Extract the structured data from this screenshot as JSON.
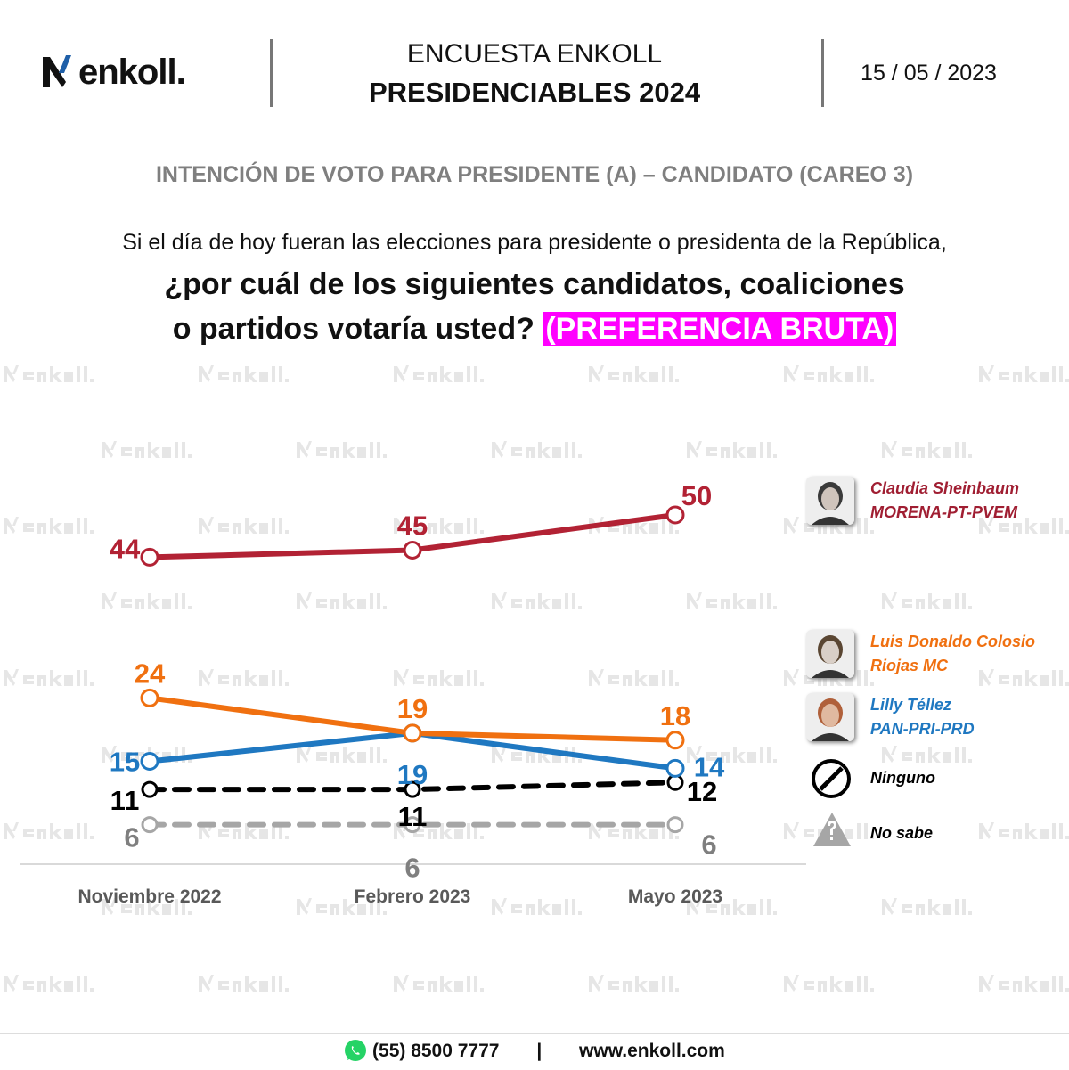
{
  "header": {
    "logo_text": "enkoll.",
    "title_line1": "ENCUESTA ENKOLL",
    "title_line2": "PRESIDENCIABLES  2024",
    "date": "15 / 05 / 2023"
  },
  "subtitle": "INTENCIÓN DE VOTO PARA PRESIDENTE (A) – CANDIDATO (CAREO 3)",
  "question": {
    "line1": "Si el día de hoy fueran las elecciones para presidente o presidenta de la República,",
    "line2": "¿por cuál de los siguientes candidatos, coaliciones",
    "line3": "o partidos votaría usted?",
    "highlight": "(PREFERENCIA BRUTA)",
    "highlight_color": "#ff00ff"
  },
  "watermark_text": "enkoll.",
  "chart_data": {
    "type": "line",
    "categories": [
      "Noviembre 2022",
      "Febrero 2023",
      "Mayo 2023"
    ],
    "grid": false,
    "legend_placement": "right",
    "series": [
      {
        "name": "Claudia Sheinbaum MORENA-PT-PVEM",
        "values": [
          44,
          45,
          50
        ],
        "color": "#b22234",
        "style": "solid"
      },
      {
        "name": "Luis Donaldo Colosio Riojas MC",
        "values": [
          24,
          19,
          18
        ],
        "color": "#f07010",
        "style": "solid"
      },
      {
        "name": "Lilly Téllez PAN-PRI-PRD",
        "values": [
          15,
          19,
          14
        ],
        "color": "#1f78c1",
        "style": "solid"
      },
      {
        "name": "Ninguno",
        "values": [
          11,
          11,
          12
        ],
        "color": "#000000",
        "style": "dashed"
      },
      {
        "name": "No sabe",
        "values": [
          6,
          6,
          6
        ],
        "color": "#a6a6a6",
        "style": "dashed"
      }
    ]
  },
  "legend": [
    {
      "line1": "Claudia Sheinbaum",
      "line2": "MORENA-PT-PVEM",
      "color": "#a01e32",
      "icon": "candidate-photo"
    },
    {
      "line1": "Luis Donaldo Colosio",
      "line2": "Riojas MC",
      "color": "#f07010",
      "icon": "candidate-photo"
    },
    {
      "line1": "Lilly Téllez",
      "line2": "PAN-PRI-PRD",
      "color": "#1f78c1",
      "icon": "candidate-photo"
    },
    {
      "line1": "Ninguno",
      "color": "#000000",
      "icon": "prohibited-icon"
    },
    {
      "line1": "No sabe",
      "color": "#000000",
      "icon": "question-triangle-icon"
    }
  ],
  "footer": {
    "phone": "(55) 8500 7777",
    "separator": "|",
    "website": "www.enkoll.com",
    "icon": "whatsapp-icon"
  }
}
